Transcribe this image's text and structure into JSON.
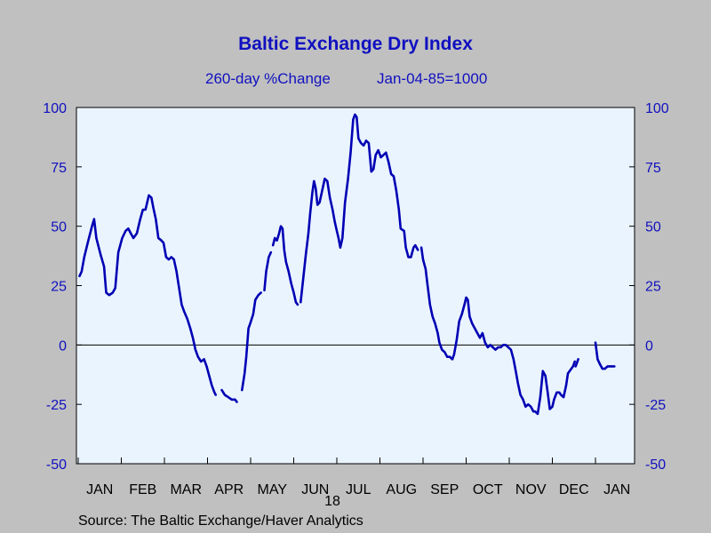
{
  "chart_data": {
    "type": "line",
    "title": "Baltic Exchange Dry Index",
    "subtitle_left": "260-day %Change",
    "subtitle_right": "Jan-04-85=1000",
    "source": "Source:  The Baltic Exchange/Haver Analytics",
    "year_label": "18",
    "ylim": [
      -50,
      100
    ],
    "yticks": [
      100,
      75,
      50,
      25,
      0,
      -25,
      -50
    ],
    "ytick_labels": [
      "100",
      "75",
      "50",
      "25",
      "0",
      "-25",
      "-50"
    ],
    "months": [
      "JAN",
      "FEB",
      "MAR",
      "APR",
      "MAY",
      "JUN",
      "JUL",
      "AUG",
      "SEP",
      "OCT",
      "NOV",
      "DEC",
      "JAN"
    ],
    "x_unit": "months since start of Jan 2018",
    "line_color": "#0000b4",
    "plot_bg": "#eaf4ff",
    "segments": [
      [
        [
          0.03,
          29
        ],
        [
          0.08,
          31
        ],
        [
          0.14,
          37
        ],
        [
          0.22,
          43
        ],
        [
          0.32,
          50
        ],
        [
          0.37,
          53
        ],
        [
          0.42,
          45
        ],
        [
          0.52,
          38
        ],
        [
          0.6,
          33
        ],
        [
          0.65,
          22
        ],
        [
          0.72,
          21
        ],
        [
          0.8,
          22
        ],
        [
          0.86,
          24
        ],
        [
          0.93,
          39
        ],
        [
          1.02,
          45
        ],
        [
          1.1,
          48
        ],
        [
          1.16,
          49
        ],
        [
          1.22,
          47
        ],
        [
          1.28,
          45
        ],
        [
          1.36,
          47
        ],
        [
          1.44,
          53
        ],
        [
          1.5,
          57
        ],
        [
          1.56,
          57
        ],
        [
          1.6,
          60
        ],
        [
          1.64,
          63
        ],
        [
          1.7,
          62
        ],
        [
          1.74,
          58
        ],
        [
          1.8,
          53
        ],
        [
          1.86,
          45
        ],
        [
          1.93,
          44
        ],
        [
          1.98,
          43
        ],
        [
          2.04,
          37
        ],
        [
          2.1,
          36
        ],
        [
          2.16,
          37
        ],
        [
          2.22,
          36
        ],
        [
          2.28,
          31
        ],
        [
          2.34,
          24
        ],
        [
          2.4,
          17
        ],
        [
          2.46,
          14
        ],
        [
          2.53,
          11
        ],
        [
          2.6,
          7
        ],
        [
          2.66,
          3
        ],
        [
          2.72,
          -2
        ],
        [
          2.78,
          -5
        ],
        [
          2.85,
          -7
        ],
        [
          2.92,
          -6
        ],
        [
          2.98,
          -9
        ],
        [
          3.04,
          -13
        ],
        [
          3.1,
          -17
        ],
        [
          3.16,
          -20
        ],
        [
          3.19,
          -21
        ]
      ],
      [
        [
          3.33,
          -19
        ],
        [
          3.4,
          -21
        ],
        [
          3.48,
          -22
        ],
        [
          3.56,
          -23
        ],
        [
          3.64,
          -23
        ],
        [
          3.68,
          -24
        ]
      ],
      [
        [
          3.8,
          -19
        ],
        [
          3.86,
          -12
        ],
        [
          3.9,
          -5
        ],
        [
          3.95,
          7
        ],
        [
          3.99,
          9
        ],
        [
          4.06,
          13
        ],
        [
          4.11,
          19
        ],
        [
          4.18,
          21
        ],
        [
          4.24,
          22
        ]
      ],
      [
        [
          4.32,
          23
        ],
        [
          4.36,
          31
        ],
        [
          4.42,
          37
        ],
        [
          4.47,
          39
        ]
      ],
      [
        [
          4.52,
          42
        ],
        [
          4.56,
          45
        ],
        [
          4.61,
          44
        ],
        [
          4.66,
          47
        ],
        [
          4.7,
          50
        ],
        [
          4.74,
          49
        ],
        [
          4.78,
          40
        ],
        [
          4.82,
          35
        ],
        [
          4.88,
          31
        ],
        [
          4.94,
          26
        ],
        [
          5.0,
          22
        ],
        [
          5.05,
          18
        ],
        [
          5.09,
          17
        ]
      ],
      [
        [
          5.16,
          18
        ],
        [
          5.22,
          28
        ],
        [
          5.28,
          38
        ],
        [
          5.34,
          47
        ],
        [
          5.38,
          55
        ],
        [
          5.43,
          64
        ],
        [
          5.47,
          69
        ],
        [
          5.51,
          66
        ],
        [
          5.55,
          59
        ],
        [
          5.6,
          60
        ],
        [
          5.66,
          65
        ],
        [
          5.72,
          70
        ],
        [
          5.78,
          69
        ],
        [
          5.84,
          62
        ],
        [
          5.9,
          57
        ],
        [
          5.95,
          52
        ],
        [
          6.0,
          48
        ],
        [
          6.04,
          45
        ],
        [
          6.08,
          41
        ],
        [
          6.13,
          45
        ],
        [
          6.19,
          60
        ],
        [
          6.26,
          70
        ],
        [
          6.32,
          81
        ],
        [
          6.38,
          95
        ],
        [
          6.42,
          97
        ],
        [
          6.46,
          96
        ],
        [
          6.5,
          87
        ],
        [
          6.56,
          85
        ],
        [
          6.62,
          84
        ],
        [
          6.68,
          86
        ],
        [
          6.74,
          85
        ],
        [
          6.8,
          73
        ],
        [
          6.85,
          74
        ],
        [
          6.9,
          80
        ],
        [
          6.96,
          82
        ],
        [
          7.02,
          79
        ],
        [
          7.08,
          80
        ],
        [
          7.14,
          81
        ],
        [
          7.2,
          77
        ],
        [
          7.26,
          72
        ],
        [
          7.32,
          71
        ],
        [
          7.38,
          65
        ],
        [
          7.44,
          57
        ],
        [
          7.48,
          49
        ],
        [
          7.56,
          48
        ],
        [
          7.6,
          41
        ],
        [
          7.66,
          37
        ],
        [
          7.72,
          37
        ],
        [
          7.78,
          41
        ],
        [
          7.82,
          42
        ],
        [
          7.88,
          40
        ]
      ],
      [
        [
          7.96,
          41
        ],
        [
          8.0,
          36
        ],
        [
          8.06,
          32
        ],
        [
          8.1,
          26
        ],
        [
          8.16,
          17
        ],
        [
          8.22,
          12
        ],
        [
          8.28,
          9
        ],
        [
          8.34,
          5
        ],
        [
          8.38,
          1
        ],
        [
          8.44,
          -2
        ],
        [
          8.5,
          -3
        ],
        [
          8.56,
          -5
        ],
        [
          8.62,
          -5
        ],
        [
          8.68,
          -6
        ],
        [
          8.72,
          -4
        ],
        [
          8.78,
          2
        ],
        [
          8.84,
          10
        ],
        [
          8.9,
          13
        ],
        [
          8.96,
          17
        ],
        [
          9.0,
          20
        ],
        [
          9.04,
          19
        ],
        [
          9.08,
          12
        ],
        [
          9.14,
          9
        ],
        [
          9.2,
          7
        ],
        [
          9.26,
          5
        ],
        [
          9.32,
          3
        ],
        [
          9.38,
          5
        ],
        [
          9.44,
          1
        ],
        [
          9.5,
          -1
        ],
        [
          9.56,
          0
        ],
        [
          9.62,
          -1
        ],
        [
          9.68,
          -2
        ],
        [
          9.74,
          -1
        ],
        [
          9.8,
          -1
        ],
        [
          9.86,
          0
        ],
        [
          9.92,
          0
        ],
        [
          9.98,
          -1
        ],
        [
          10.04,
          -2
        ],
        [
          10.1,
          -6
        ],
        [
          10.16,
          -12
        ],
        [
          10.2,
          -16
        ],
        [
          10.26,
          -21
        ],
        [
          10.32,
          -23
        ],
        [
          10.38,
          -26
        ],
        [
          10.44,
          -25
        ],
        [
          10.5,
          -26
        ],
        [
          10.56,
          -28
        ],
        [
          10.6,
          -28
        ],
        [
          10.66,
          -29
        ],
        [
          10.72,
          -22
        ],
        [
          10.78,
          -11
        ],
        [
          10.84,
          -13
        ],
        [
          10.9,
          -21
        ],
        [
          10.94,
          -27
        ],
        [
          11.0,
          -26
        ],
        [
          11.04,
          -23
        ],
        [
          11.1,
          -20
        ],
        [
          11.16,
          -20
        ],
        [
          11.2,
          -21
        ],
        [
          11.26,
          -22
        ],
        [
          11.32,
          -17
        ],
        [
          11.36,
          -12
        ],
        [
          11.44,
          -10
        ],
        [
          11.48,
          -9
        ],
        [
          11.52,
          -7
        ]
      ],
      [
        [
          11.54,
          -9
        ],
        [
          11.6,
          -6
        ]
      ],
      [
        [
          12.0,
          1
        ],
        [
          12.05,
          -6
        ],
        [
          12.1,
          -8
        ],
        [
          12.16,
          -10
        ],
        [
          12.22,
          -10
        ],
        [
          12.28,
          -9
        ],
        [
          12.34,
          -9
        ],
        [
          12.4,
          -9
        ],
        [
          12.44,
          -9
        ]
      ]
    ]
  }
}
